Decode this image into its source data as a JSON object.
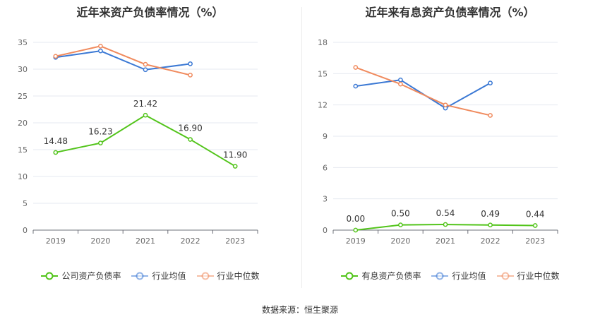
{
  "source": "数据来源：恒生聚源",
  "chart_data": [
    {
      "type": "line",
      "title": "近年来资产负债率情况（%）",
      "categories": [
        "2019",
        "2020",
        "2021",
        "2022",
        "2023"
      ],
      "ylim": [
        0,
        35
      ],
      "yticks": [
        0,
        5,
        10,
        15,
        20,
        25,
        30,
        35
      ],
      "grid": true,
      "legend_position": "bottom",
      "series": [
        {
          "name": "公司资产负债率",
          "color": "#52c41a",
          "values": [
            14.48,
            16.23,
            21.42,
            16.9,
            11.9
          ],
          "labels": [
            "14.48",
            "16.23",
            "21.42",
            "16.90",
            "11.90"
          ]
        },
        {
          "name": "行业均值",
          "color": "#3a78d4",
          "values": [
            32.2,
            33.4,
            29.9,
            31.0,
            null
          ]
        },
        {
          "name": "行业中位数",
          "color": "#f08a5d",
          "values": [
            32.4,
            34.3,
            30.9,
            28.9,
            null
          ]
        }
      ]
    },
    {
      "type": "line",
      "title": "近年来有息资产负债率情况（%）",
      "categories": [
        "2019",
        "2020",
        "2021",
        "2022",
        "2023"
      ],
      "ylim": [
        0,
        18
      ],
      "yticks": [
        0,
        3,
        6,
        9,
        12,
        15,
        18
      ],
      "grid": true,
      "legend_position": "bottom",
      "series": [
        {
          "name": "有息资产负债率",
          "color": "#52c41a",
          "values": [
            0.0,
            0.5,
            0.54,
            0.49,
            0.44
          ],
          "labels": [
            "0.00",
            "0.50",
            "0.54",
            "0.49",
            "0.44"
          ]
        },
        {
          "name": "行业均值",
          "color": "#3a78d4",
          "values": [
            13.8,
            14.4,
            11.7,
            14.1,
            null
          ]
        },
        {
          "name": "行业中位数",
          "color": "#f08a5d",
          "values": [
            15.6,
            14.0,
            12.0,
            11.0,
            null
          ]
        }
      ]
    }
  ]
}
